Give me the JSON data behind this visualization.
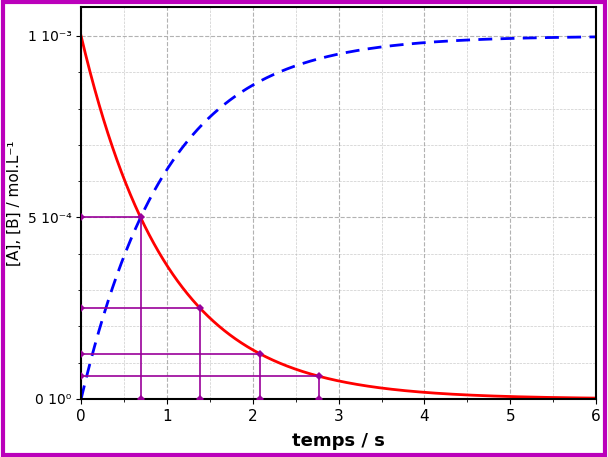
{
  "xlabel": "temps / s",
  "ylabel": "[A], [B] / mol.L⁻¹",
  "A0": 0.001,
  "k": 1.0,
  "t_max": 6.0,
  "xlim": [
    0,
    6
  ],
  "xticks": [
    0,
    1,
    2,
    3,
    4,
    5,
    6
  ],
  "curve_A_color": "#ff0000",
  "curve_B_color": "#0000ff",
  "annotation_color": "#990099",
  "grid_color": "#aaaaaa",
  "ax_bg_color": "#ffffff",
  "fig_bg_color": "#ffffff",
  "border_color": "#bb00bb",
  "ann_lw": 1.2,
  "curve_lw": 2.0
}
